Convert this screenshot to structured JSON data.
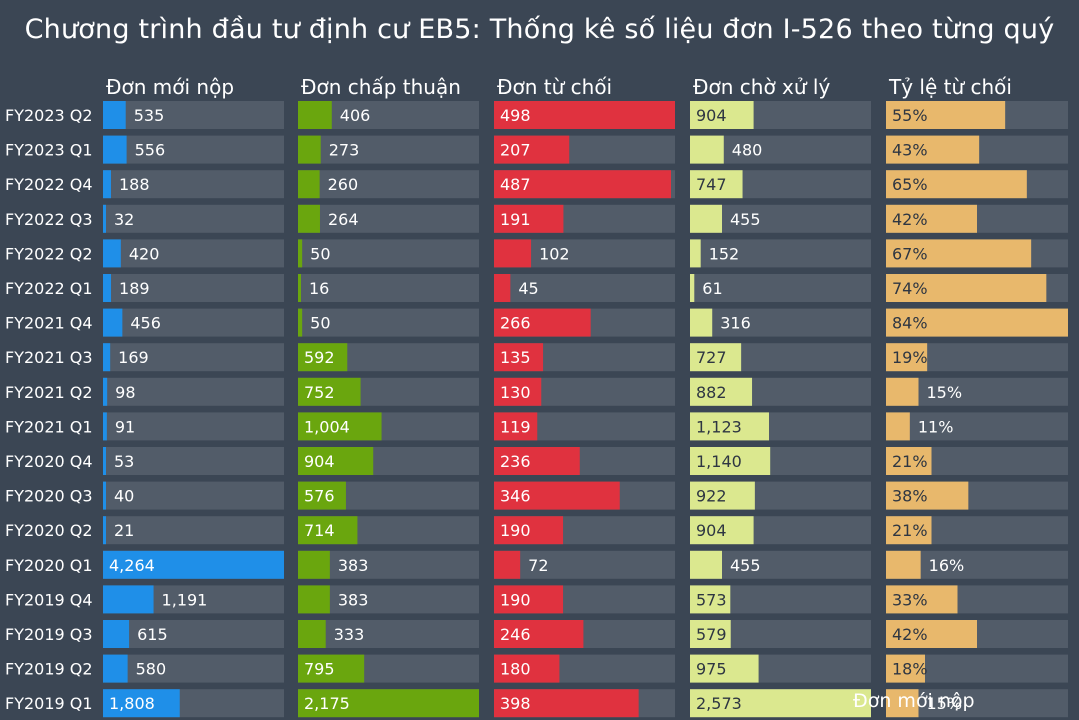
{
  "chart_data": {
    "type": "bar",
    "title": "Chương trình đầu tư định cư EB5: Thống kê số liệu đơn I-526 theo từng quý",
    "categories": [
      "FY2023 Q2",
      "FY2023 Q1",
      "FY2022 Q4",
      "FY2022 Q3",
      "FY2022 Q2",
      "FY2022 Q1",
      "FY2021 Q4",
      "FY2021 Q3",
      "FY2021 Q2",
      "FY2021 Q1",
      "FY2020 Q4",
      "FY2020 Q3",
      "FY2020 Q2",
      "FY2020 Q1",
      "FY2019 Q4",
      "FY2019 Q3",
      "FY2019 Q2",
      "FY2019 Q1"
    ],
    "series": [
      {
        "name": "Đơn mới nộp",
        "color": "#1f8fe8",
        "max": 4264,
        "values": [
          535,
          556,
          188,
          32,
          420,
          189,
          456,
          169,
          98,
          91,
          53,
          40,
          21,
          4264,
          1191,
          615,
          580,
          1808
        ],
        "labels": [
          "535",
          "556",
          "188",
          "32",
          "420",
          "189",
          "456",
          "169",
          "98",
          "91",
          "53",
          "40",
          "21",
          "4,264",
          "1,191",
          "615",
          "580",
          "1,808"
        ]
      },
      {
        "name": "Đơn chấp thuận",
        "color": "#6aa60e",
        "max": 2175,
        "values": [
          406,
          273,
          260,
          264,
          50,
          16,
          50,
          592,
          752,
          1004,
          904,
          576,
          714,
          383,
          383,
          333,
          795,
          2175
        ],
        "labels": [
          "406",
          "273",
          "260",
          "264",
          "50",
          "16",
          "50",
          "592",
          "752",
          "1,004",
          "904",
          "576",
          "714",
          "383",
          "383",
          "333",
          "795",
          "2,175"
        ]
      },
      {
        "name": "Đơn từ chối",
        "color": "#e0323f",
        "max": 498,
        "values": [
          498,
          207,
          487,
          191,
          102,
          45,
          266,
          135,
          130,
          119,
          236,
          346,
          190,
          72,
          190,
          246,
          180,
          398
        ],
        "labels": [
          "498",
          "207",
          "487",
          "191",
          "102",
          "45",
          "266",
          "135",
          "130",
          "119",
          "236",
          "346",
          "190",
          "72",
          "190",
          "246",
          "180",
          "398"
        ]
      },
      {
        "name": "Đơn chờ xử lý",
        "color": "#dbe88f",
        "max": 2573,
        "values": [
          904,
          480,
          747,
          455,
          152,
          61,
          316,
          727,
          882,
          1123,
          1140,
          922,
          904,
          455,
          573,
          579,
          975,
          2573
        ],
        "labels": [
          "904",
          "480",
          "747",
          "455",
          "152",
          "61",
          "316",
          "727",
          "882",
          "1,123",
          "1,140",
          "922",
          "904",
          "455",
          "573",
          "579",
          "975",
          "2,573"
        ]
      },
      {
        "name": "Tỷ lệ từ chối",
        "color": "#e8b86c",
        "max": 84,
        "values": [
          55,
          43,
          65,
          42,
          67,
          74,
          84,
          19,
          15,
          11,
          21,
          38,
          21,
          16,
          33,
          42,
          18,
          15
        ],
        "labels": [
          "55%",
          "43%",
          "65%",
          "42%",
          "67%",
          "74%",
          "84%",
          "19%",
          "15%",
          "11%",
          "21%",
          "38%",
          "21%",
          "16%",
          "33%",
          "42%",
          "18%",
          "15%"
        ]
      }
    ],
    "overlay_text": "Đơn mới nộp"
  }
}
